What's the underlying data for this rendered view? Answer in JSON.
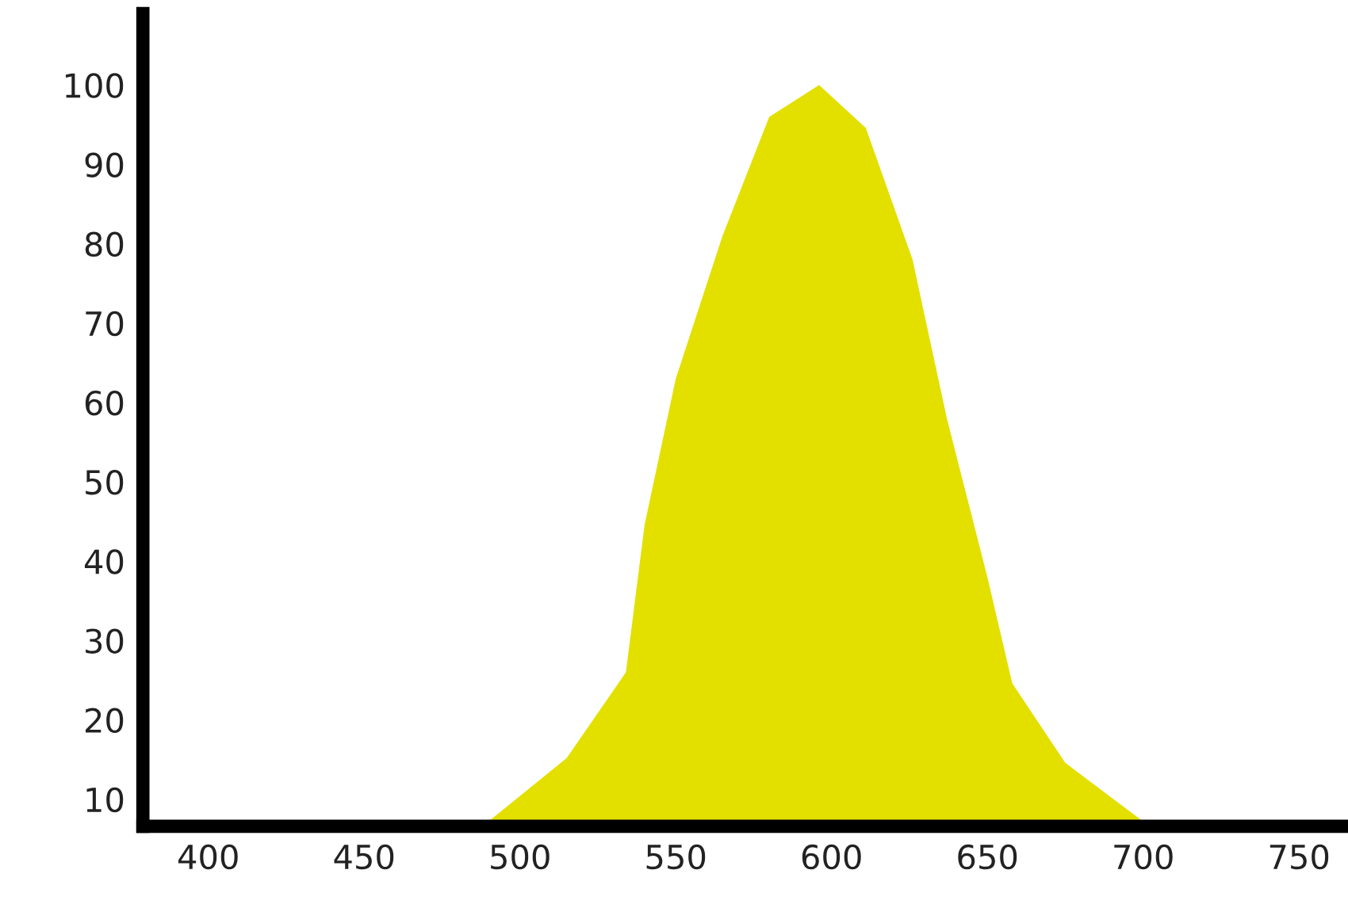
{
  "chart_data": {
    "type": "area",
    "x": [
      488,
      515,
      534,
      540,
      550,
      565,
      580,
      596,
      611,
      626,
      637,
      650,
      658,
      675,
      700
    ],
    "series": [
      {
        "color": "#e3e000",
        "values": [
          6.6,
          15.2,
          26,
          44.6,
          63,
          81,
          96,
          100,
          94.6,
          78,
          58,
          38,
          24.6,
          14.6,
          7.2
        ]
      }
    ],
    "xlim": [
      379,
      764
    ],
    "ylim": [
      6.6,
      109
    ],
    "xticks": [
      400,
      450,
      500,
      550,
      600,
      650,
      700,
      750
    ],
    "yticks": [
      10,
      20,
      30,
      40,
      50,
      60,
      70,
      80,
      90,
      100
    ],
    "grid": false,
    "legend": false
  }
}
